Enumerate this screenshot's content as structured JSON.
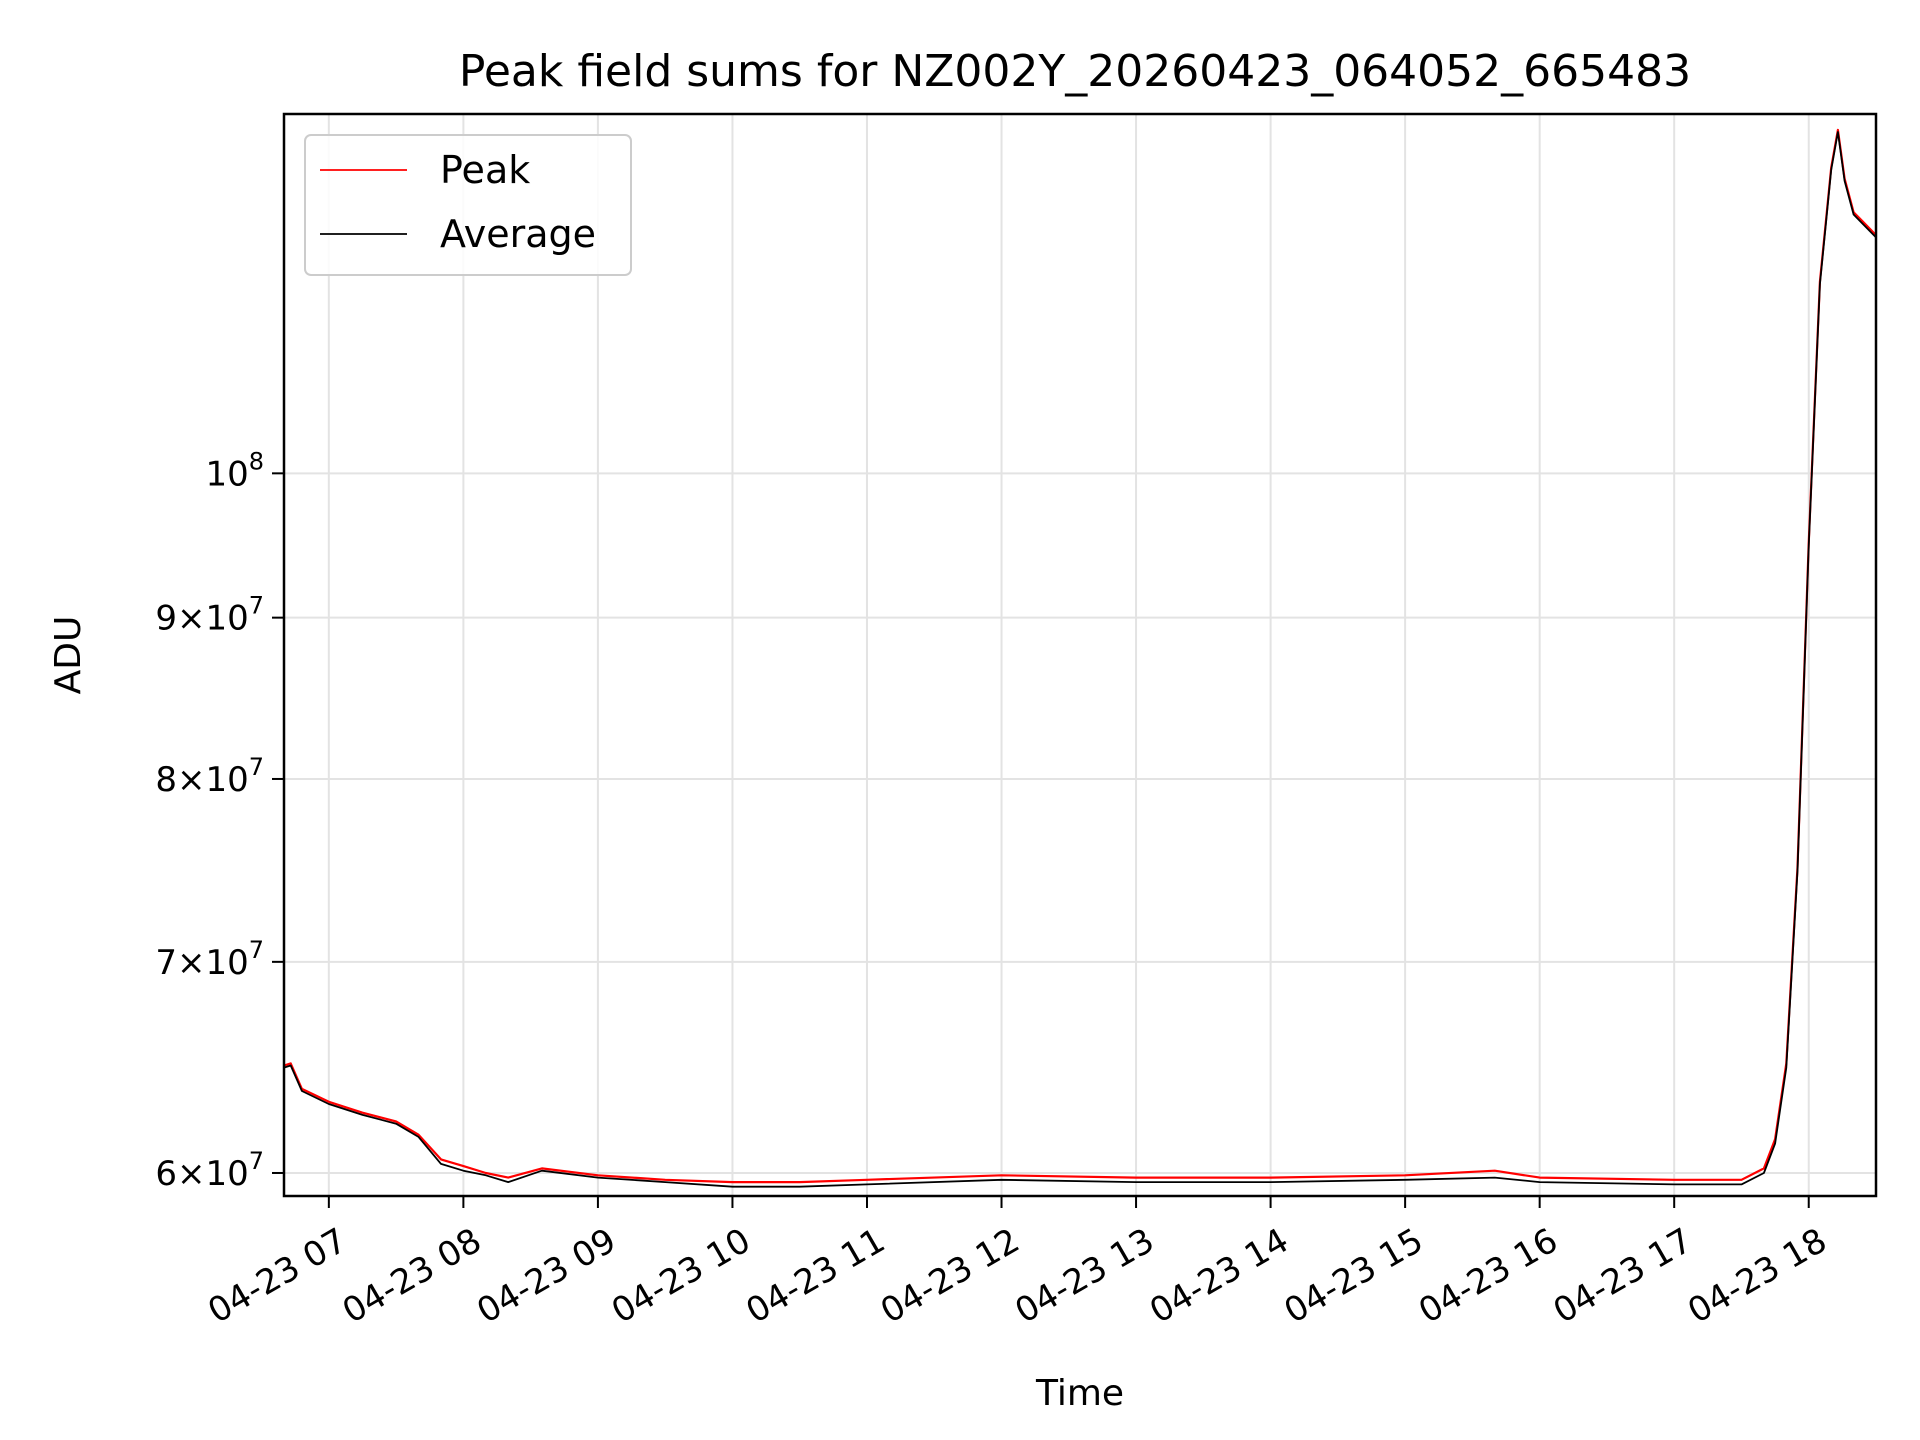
{
  "chart_data": {
    "type": "line",
    "title": "Peak field sums for NZ002Y_20260423_064052_665483",
    "xlabel": "Time",
    "ylabel": "ADU",
    "yscale": "log",
    "grid": true,
    "legend_position": "upper-left",
    "xlim": [
      "2026-04-23T06:40",
      "2026-04-23T18:30"
    ],
    "ylim": [
      59000000,
      130000000
    ],
    "x_ticks": [
      {
        "label": "04-23 07",
        "value": "2026-04-23T07:00"
      },
      {
        "label": "04-23 08",
        "value": "2026-04-23T08:00"
      },
      {
        "label": "04-23 09",
        "value": "2026-04-23T09:00"
      },
      {
        "label": "04-23 10",
        "value": "2026-04-23T10:00"
      },
      {
        "label": "04-23 11",
        "value": "2026-04-23T11:00"
      },
      {
        "label": "04-23 12",
        "value": "2026-04-23T12:00"
      },
      {
        "label": "04-23 13",
        "value": "2026-04-23T13:00"
      },
      {
        "label": "04-23 14",
        "value": "2026-04-23T14:00"
      },
      {
        "label": "04-23 15",
        "value": "2026-04-23T15:00"
      },
      {
        "label": "04-23 16",
        "value": "2026-04-23T16:00"
      },
      {
        "label": "04-23 17",
        "value": "2026-04-23T17:00"
      },
      {
        "label": "04-23 18",
        "value": "2026-04-23T18:00"
      }
    ],
    "y_ticks": [
      {
        "mant": "6",
        "exp": "7",
        "value": 60000000
      },
      {
        "mant": "7",
        "exp": "7",
        "value": 70000000
      },
      {
        "mant": "8",
        "exp": "7",
        "value": 80000000
      },
      {
        "mant": "9",
        "exp": "7",
        "value": 90000000
      },
      {
        "mant": "",
        "exp": "8",
        "value": 100000000
      }
    ],
    "series": [
      {
        "name": "Peak",
        "color": "#ff0000",
        "x": [
          "2026-04-23T06:40",
          "2026-04-23T06:43",
          "2026-04-23T06:48",
          "2026-04-23T07:00",
          "2026-04-23T07:15",
          "2026-04-23T07:30",
          "2026-04-23T07:40",
          "2026-04-23T07:50",
          "2026-04-23T08:00",
          "2026-04-23T08:10",
          "2026-04-23T08:20",
          "2026-04-23T08:35",
          "2026-04-23T09:00",
          "2026-04-23T09:30",
          "2026-04-23T10:00",
          "2026-04-23T10:30",
          "2026-04-23T11:00",
          "2026-04-23T12:00",
          "2026-04-23T13:00",
          "2026-04-23T14:00",
          "2026-04-23T15:00",
          "2026-04-23T15:40",
          "2026-04-23T16:00",
          "2026-04-23T17:00",
          "2026-04-23T17:30",
          "2026-04-23T17:40",
          "2026-04-23T17:45",
          "2026-04-23T17:50",
          "2026-04-23T17:55",
          "2026-04-23T18:00",
          "2026-04-23T18:05",
          "2026-04-23T18:10",
          "2026-04-23T18:13",
          "2026-04-23T18:16",
          "2026-04-23T18:20",
          "2026-04-23T18:24",
          "2026-04-23T18:30"
        ],
        "y": [
          64900000,
          65000000,
          63800000,
          63200000,
          62700000,
          62300000,
          61700000,
          60600000,
          60300000,
          60000000,
          59800000,
          60200000,
          59900000,
          59700000,
          59600000,
          59600000,
          59700000,
          59900000,
          59800000,
          59800000,
          59900000,
          60100000,
          59800000,
          59700000,
          59700000,
          60200000,
          61500000,
          65000000,
          75000000,
          95000000,
          115000000,
          125000000,
          128500000,
          124000000,
          121000000,
          120200000,
          119000000
        ]
      },
      {
        "name": "Average",
        "color": "#000000",
        "x": [
          "2026-04-23T06:40",
          "2026-04-23T06:43",
          "2026-04-23T06:48",
          "2026-04-23T07:00",
          "2026-04-23T07:15",
          "2026-04-23T07:30",
          "2026-04-23T07:40",
          "2026-04-23T07:50",
          "2026-04-23T08:00",
          "2026-04-23T08:10",
          "2026-04-23T08:20",
          "2026-04-23T08:35",
          "2026-04-23T09:00",
          "2026-04-23T09:30",
          "2026-04-23T10:00",
          "2026-04-23T10:30",
          "2026-04-23T11:00",
          "2026-04-23T12:00",
          "2026-04-23T13:00",
          "2026-04-23T14:00",
          "2026-04-23T15:00",
          "2026-04-23T15:40",
          "2026-04-23T16:00",
          "2026-04-23T17:00",
          "2026-04-23T17:30",
          "2026-04-23T17:40",
          "2026-04-23T17:45",
          "2026-04-23T17:50",
          "2026-04-23T17:55",
          "2026-04-23T18:00",
          "2026-04-23T18:05",
          "2026-04-23T18:10",
          "2026-04-23T18:13",
          "2026-04-23T18:16",
          "2026-04-23T18:20",
          "2026-04-23T18:24",
          "2026-04-23T18:30"
        ],
        "y": [
          64800000,
          64900000,
          63700000,
          63100000,
          62600000,
          62200000,
          61600000,
          60400000,
          60100000,
          59900000,
          59600000,
          60100000,
          59800000,
          59600000,
          59400000,
          59400000,
          59500000,
          59700000,
          59600000,
          59600000,
          59700000,
          59800000,
          59600000,
          59500000,
          59500000,
          60000000,
          61300000,
          64800000,
          74800000,
          94800000,
          114800000,
          124800000,
          128300000,
          123800000,
          120800000,
          120000000,
          118800000
        ]
      }
    ]
  }
}
